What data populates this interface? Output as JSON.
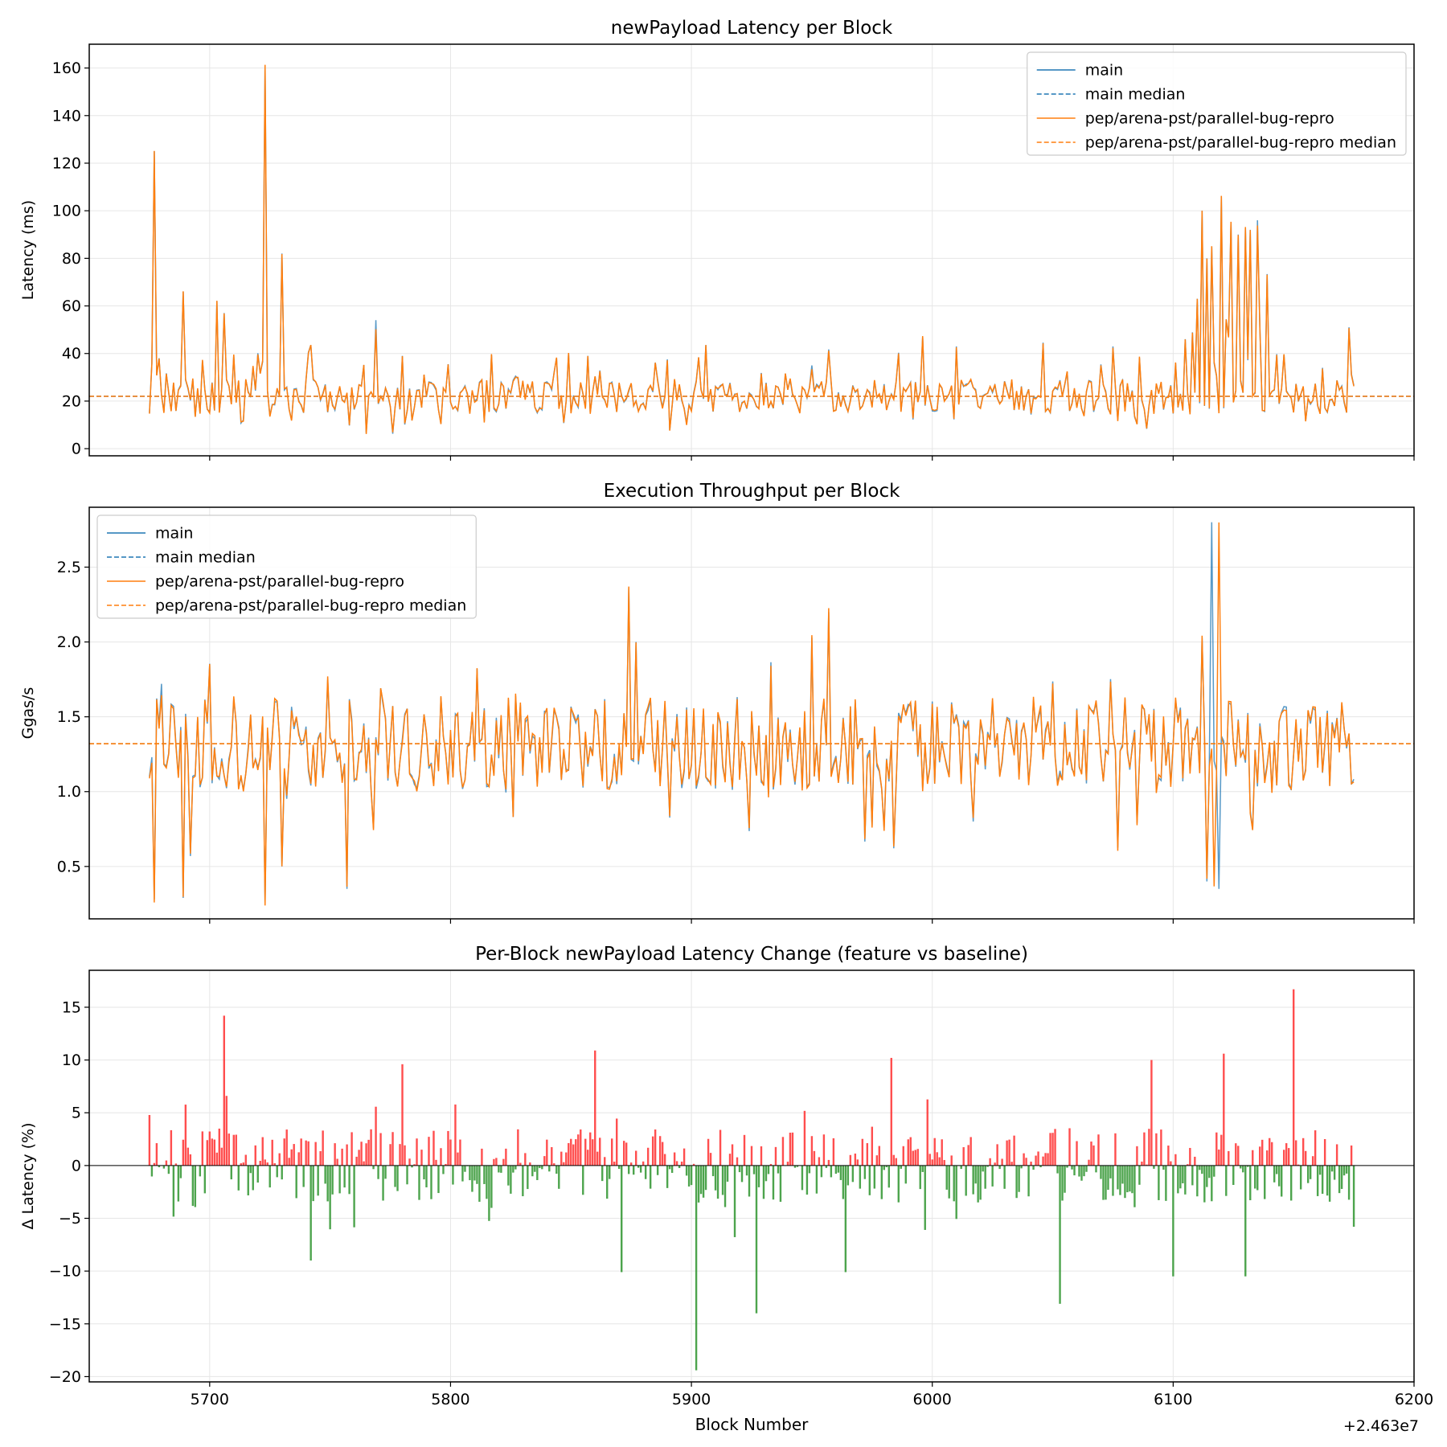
{
  "figure": {
    "offset_text": "+2.463e7",
    "xlabel": "Block Number"
  },
  "colors": {
    "main": "#1f77b4",
    "feature": "#ff7f0e",
    "regression": "#ff3b3b",
    "improvement": "#3a9a3a",
    "grid": "#e6e6e6"
  },
  "chart_data": [
    {
      "type": "line",
      "title": "newPayload Latency per Block",
      "xlabel": "",
      "ylabel": "Latency (ms)",
      "xlim": [
        5650,
        6200
      ],
      "ylim": [
        -3,
        170
      ],
      "xticks": [
        5700,
        5800,
        5900,
        6000,
        6100,
        6200
      ],
      "yticks": [
        0,
        20,
        40,
        60,
        80,
        100,
        120,
        140,
        160
      ],
      "grid": true,
      "legend": "top-right",
      "x_range": [
        5675,
        6175
      ],
      "medians": {
        "main": 22,
        "feature": 22
      },
      "series": [
        {
          "name": "main",
          "style": "solid",
          "baseline": 22,
          "spikes": [
            [
              5675,
              15
            ],
            [
              5676,
              36
            ],
            [
              5677,
              125
            ],
            [
              5678,
              31
            ],
            [
              5679,
              38
            ],
            [
              5689,
              66
            ],
            [
              5697,
              37
            ],
            [
              5703,
              62
            ],
            [
              5706,
              57
            ],
            [
              5710,
              39
            ],
            [
              5723,
              161
            ],
            [
              5730,
              82
            ],
            [
              5769,
              54
            ],
            [
              5780,
              39
            ],
            [
              5849,
              40
            ],
            [
              5857,
              39
            ],
            [
              5950,
              35
            ],
            [
              5996,
              47
            ],
            [
              6010,
              43
            ],
            [
              6075,
              43
            ],
            [
              6110,
              63
            ],
            [
              6112,
              100
            ],
            [
              6114,
              80
            ],
            [
              6116,
              85
            ],
            [
              6120,
              106
            ],
            [
              6124,
              95
            ],
            [
              6127,
              90
            ],
            [
              6130,
              93
            ],
            [
              6132,
              92
            ],
            [
              6135,
              96
            ],
            [
              6162,
              34
            ],
            [
              6173,
              51
            ]
          ]
        },
        {
          "name": "main median",
          "style": "dashed",
          "value": 22
        },
        {
          "name": "pep/arena-pst/parallel-bug-repro",
          "style": "solid",
          "baseline": 22,
          "spikes": [
            [
              5675,
              15
            ],
            [
              5676,
              36
            ],
            [
              5677,
              125
            ],
            [
              5678,
              31
            ],
            [
              5679,
              38
            ],
            [
              5689,
              66
            ],
            [
              5697,
              37
            ],
            [
              5703,
              62
            ],
            [
              5706,
              57
            ],
            [
              5710,
              39
            ],
            [
              5723,
              161
            ],
            [
              5730,
              82
            ],
            [
              5769,
              50
            ],
            [
              5780,
              39
            ],
            [
              5849,
              40
            ],
            [
              5857,
              39
            ],
            [
              5950,
              33
            ],
            [
              5996,
              47
            ],
            [
              6010,
              43
            ],
            [
              6075,
              43
            ],
            [
              6110,
              63
            ],
            [
              6112,
              100
            ],
            [
              6114,
              80
            ],
            [
              6116,
              85
            ],
            [
              6120,
              106
            ],
            [
              6124,
              95
            ],
            [
              6127,
              90
            ],
            [
              6130,
              93
            ],
            [
              6132,
              92
            ],
            [
              6135,
              94
            ],
            [
              6162,
              34
            ],
            [
              6173,
              51
            ]
          ]
        },
        {
          "name": "pep/arena-pst/parallel-bug-repro median",
          "style": "dashed",
          "value": 22
        }
      ]
    },
    {
      "type": "line",
      "title": "Execution Throughput per Block",
      "xlabel": "",
      "ylabel": "Ggas/s",
      "xlim": [
        5650,
        6200
      ],
      "ylim": [
        0.15,
        2.9
      ],
      "xticks": [
        5700,
        5800,
        5900,
        6000,
        6100,
        6200
      ],
      "yticks": [
        0.5,
        1.0,
        1.5,
        2.0,
        2.5
      ],
      "grid": true,
      "legend": "top-left",
      "x_range": [
        5675,
        6175
      ],
      "medians": {
        "main": 1.32,
        "feature": 1.32
      },
      "series": [
        {
          "name": "main",
          "style": "solid",
          "baseline": 1.32,
          "spikes": [
            [
              5675,
              1.1
            ],
            [
              5676,
              1.23
            ],
            [
              5677,
              0.28
            ],
            [
              5680,
              1.72
            ],
            [
              5689,
              0.29
            ],
            [
              5723,
              0.26
            ],
            [
              5730,
              0.5
            ],
            [
              5757,
              0.35
            ],
            [
              5874,
              2.36
            ],
            [
              5877,
              2.0
            ],
            [
              5950,
              2.03
            ],
            [
              5957,
              2.2
            ],
            [
              6116,
              2.8
            ],
            [
              6112,
              2.03
            ],
            [
              6114,
              0.4
            ],
            [
              6119,
              0.35
            ]
          ]
        },
        {
          "name": "main median",
          "style": "dashed",
          "value": 1.32
        },
        {
          "name": "pep/arena-pst/parallel-bug-repro",
          "style": "solid",
          "baseline": 1.32,
          "spikes": [
            [
              5675,
              1.1
            ],
            [
              5676,
              1.2
            ],
            [
              5677,
              0.27
            ],
            [
              5680,
              1.65
            ],
            [
              5689,
              0.28
            ],
            [
              5723,
              0.26
            ],
            [
              5730,
              0.49
            ],
            [
              5757,
              0.34
            ],
            [
              5874,
              2.37
            ],
            [
              5877,
              2.01
            ],
            [
              5950,
              2.03
            ],
            [
              5957,
              2.21
            ],
            [
              6119,
              2.81
            ],
            [
              6112,
              2.03
            ],
            [
              6114,
              0.4
            ],
            [
              6117,
              0.35
            ]
          ]
        },
        {
          "name": "pep/arena-pst/parallel-bug-repro median",
          "style": "dashed",
          "value": 1.32
        }
      ]
    },
    {
      "type": "bar",
      "title": "Per-Block newPayload Latency Change (feature vs baseline)",
      "xlabel": "Block Number",
      "ylabel": "Δ Latency (%)",
      "xlim": [
        5650,
        6200
      ],
      "ylim": [
        -20.5,
        18.5
      ],
      "xticks": [
        5700,
        5800,
        5900,
        6000,
        6100,
        6200
      ],
      "yticks": [
        -20,
        -15,
        -10,
        -5,
        0,
        5,
        10,
        15
      ],
      "grid": true,
      "x_range": [
        5675,
        6175
      ],
      "notable_values": [
        [
          5706,
          14.2
        ],
        [
          5707,
          6.6
        ],
        [
          5742,
          -9.0
        ],
        [
          5780,
          9.6
        ],
        [
          5860,
          10.9
        ],
        [
          5871,
          -10.1
        ],
        [
          5902,
          -19.4
        ],
        [
          5927,
          -14.0
        ],
        [
          5964,
          -10.1
        ],
        [
          5983,
          10.2
        ],
        [
          6053,
          -13.1
        ],
        [
          6091,
          10.0
        ],
        [
          6100,
          -10.5
        ],
        [
          6121,
          10.6
        ],
        [
          6130,
          -10.5
        ],
        [
          6150,
          16.7
        ],
        [
          6175,
          -5.8
        ],
        [
          6174,
          1.9
        ]
      ]
    }
  ]
}
